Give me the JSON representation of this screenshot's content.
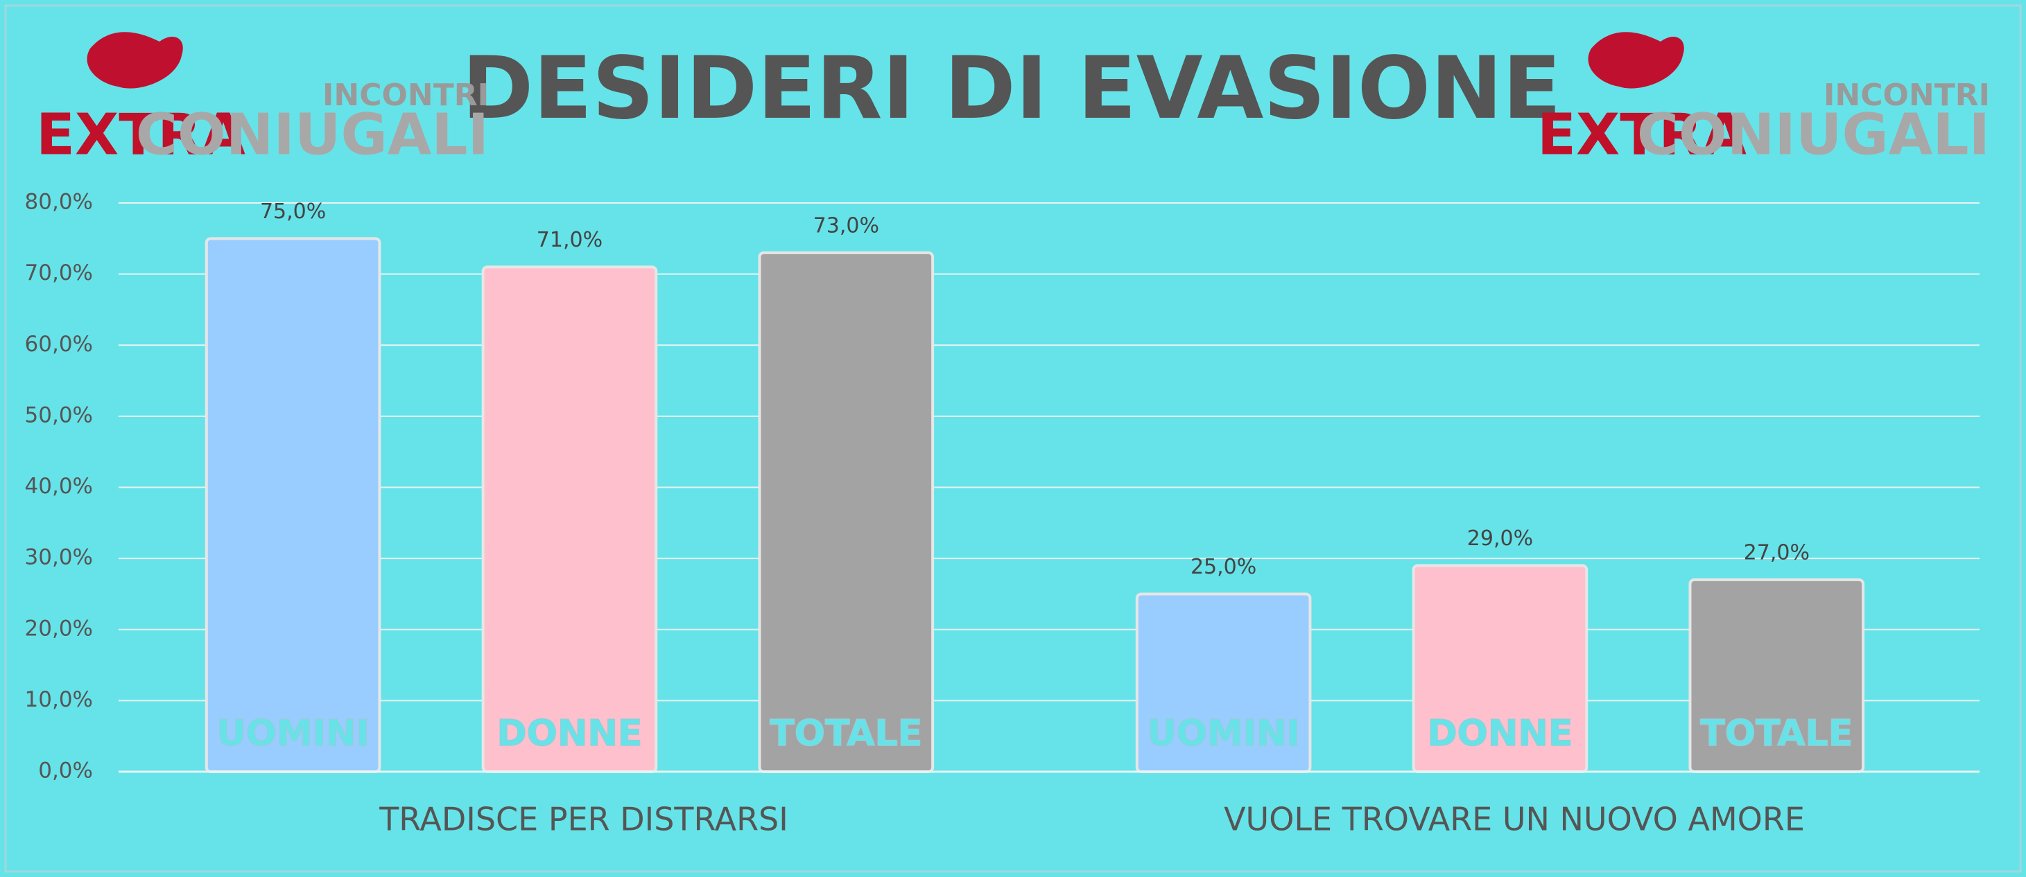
{
  "chart_data": {
    "type": "bar",
    "title": "DESIDERI DI EVASIONE",
    "logo": {
      "top": "INCONTRI",
      "left": "EXTRA",
      "right": "CONIUGALI"
    },
    "categories": [
      "TRADISCE PER DISTRARSI",
      "VUOLE TROVARE UN NUOVO AMORE"
    ],
    "series": [
      {
        "name": "UOMINI",
        "color": "#99ccff",
        "values": [
          75,
          25
        ],
        "value_labels": [
          "75,0%",
          "25,0%"
        ]
      },
      {
        "name": "DONNE",
        "color": "#ffc0cd",
        "values": [
          71,
          29
        ],
        "value_labels": [
          "71,0%",
          "29,0%"
        ]
      },
      {
        "name": "TOTALE",
        "color": "#a3a3a3",
        "values": [
          73,
          27
        ],
        "value_labels": [
          "73,0%",
          "27,0%"
        ]
      }
    ],
    "ylim": [
      0,
      80
    ],
    "yticks": [
      {
        "value": 0,
        "label": "0,0%"
      },
      {
        "value": 10,
        "label": "10,0%"
      },
      {
        "value": 20,
        "label": "20,0%"
      },
      {
        "value": 30,
        "label": "30,0%"
      },
      {
        "value": 40,
        "label": "40,0%"
      },
      {
        "value": 50,
        "label": "50,0%"
      },
      {
        "value": 60,
        "label": "60,0%"
      },
      {
        "value": 70,
        "label": "70,0%"
      },
      {
        "value": 80,
        "label": "80,0%"
      }
    ],
    "grid": true
  }
}
